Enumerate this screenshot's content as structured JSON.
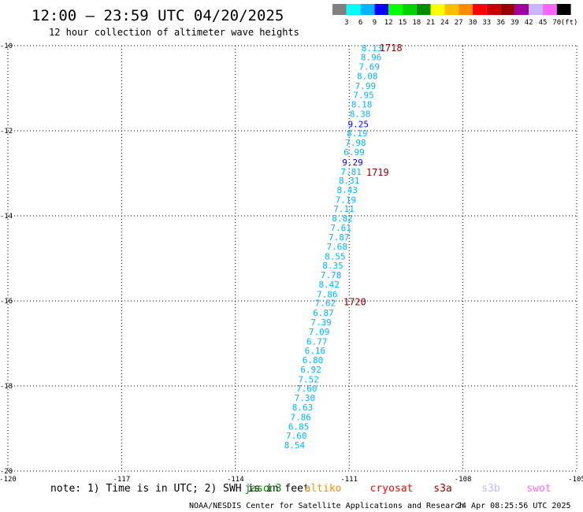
{
  "header": {
    "title": "12:00 – 23:59 UTC 04/20/2025",
    "subtitle": "12 hour collection of altimeter wave heights"
  },
  "legend": {
    "unit": "(ft)",
    "colors": [
      "#808080",
      "#00ffff",
      "#00b4ff",
      "#0000ff",
      "#00ff00",
      "#00d200",
      "#008c00",
      "#ffff00",
      "#ffbe00",
      "#ff8c00",
      "#ff0000",
      "#c80000",
      "#960000",
      "#a000a0",
      "#c8b4ff",
      "#ff64ff",
      "#000000"
    ],
    "labels": [
      "3",
      "6",
      "9",
      "12",
      "15",
      "18",
      "21",
      "24",
      "27",
      "30",
      "33",
      "36",
      "39",
      "42",
      "45",
      "70"
    ]
  },
  "chart_data": {
    "type": "scatter",
    "title": "12:00 – 23:59 UTC 04/20/2025",
    "subtitle": "12 hour collection of altimeter wave heights",
    "xlim": [
      -120,
      -105
    ],
    "ylim": [
      -20,
      -10
    ],
    "x_ticks": [
      "-120",
      "-117",
      "-114",
      "-111",
      "-108",
      "-105"
    ],
    "x_tick_values": [
      -120,
      -117,
      -114,
      -111,
      -108,
      -105
    ],
    "y_ticks": [
      "-10",
      "-12",
      "-14",
      "-16",
      "-18",
      "-20"
    ],
    "y_tick_values": [
      -10,
      -12,
      -14,
      -16,
      -18,
      -20
    ],
    "grid": true,
    "points": [
      {
        "lon": -110.4,
        "lat": -10.06,
        "swh": "8.13"
      },
      {
        "lon": -110.42,
        "lat": -10.27,
        "swh": "8.96"
      },
      {
        "lon": -110.47,
        "lat": -10.49,
        "swh": "7.69"
      },
      {
        "lon": -110.52,
        "lat": -10.71,
        "swh": "8.08"
      },
      {
        "lon": -110.57,
        "lat": -10.94,
        "swh": "7.99"
      },
      {
        "lon": -110.62,
        "lat": -11.16,
        "swh": "7.95"
      },
      {
        "lon": -110.67,
        "lat": -11.38,
        "swh": "8.18"
      },
      {
        "lon": -110.71,
        "lat": -11.6,
        "swh": "8.38"
      },
      {
        "lon": -110.76,
        "lat": -11.84,
        "swh": "9.25"
      },
      {
        "lon": -110.79,
        "lat": -12.06,
        "swh": "8.19"
      },
      {
        "lon": -110.83,
        "lat": -12.28,
        "swh": "7.98"
      },
      {
        "lon": -110.87,
        "lat": -12.5,
        "swh": "6.99"
      },
      {
        "lon": -110.91,
        "lat": -12.74,
        "swh": "9.29"
      },
      {
        "lon": -110.95,
        "lat": -12.96,
        "swh": "7.81"
      },
      {
        "lon": -111.0,
        "lat": -13.17,
        "swh": "8.31"
      },
      {
        "lon": -111.05,
        "lat": -13.39,
        "swh": "8.43"
      },
      {
        "lon": -111.09,
        "lat": -13.62,
        "swh": "7.19"
      },
      {
        "lon": -111.14,
        "lat": -13.83,
        "swh": "7.11"
      },
      {
        "lon": -111.18,
        "lat": -14.06,
        "swh": "8.82"
      },
      {
        "lon": -111.22,
        "lat": -14.28,
        "swh": "7.61"
      },
      {
        "lon": -111.27,
        "lat": -14.5,
        "swh": "7.87"
      },
      {
        "lon": -111.32,
        "lat": -14.72,
        "swh": "7.68"
      },
      {
        "lon": -111.37,
        "lat": -14.95,
        "swh": "8.55"
      },
      {
        "lon": -111.43,
        "lat": -15.17,
        "swh": "8.35"
      },
      {
        "lon": -111.48,
        "lat": -15.39,
        "swh": "7.78"
      },
      {
        "lon": -111.53,
        "lat": -15.61,
        "swh": "8.42"
      },
      {
        "lon": -111.58,
        "lat": -15.84,
        "swh": "7.86"
      },
      {
        "lon": -111.63,
        "lat": -16.05,
        "swh": "7.62"
      },
      {
        "lon": -111.68,
        "lat": -16.28,
        "swh": "6.87"
      },
      {
        "lon": -111.74,
        "lat": -16.5,
        "swh": "7.39"
      },
      {
        "lon": -111.79,
        "lat": -16.72,
        "swh": "7.09"
      },
      {
        "lon": -111.85,
        "lat": -16.95,
        "swh": "6.77"
      },
      {
        "lon": -111.9,
        "lat": -17.17,
        "swh": "6.16"
      },
      {
        "lon": -111.96,
        "lat": -17.39,
        "swh": "6.80"
      },
      {
        "lon": -112.01,
        "lat": -17.61,
        "swh": "6.92"
      },
      {
        "lon": -112.07,
        "lat": -17.84,
        "swh": "7.52"
      },
      {
        "lon": -112.12,
        "lat": -18.06,
        "swh": "7.60"
      },
      {
        "lon": -112.17,
        "lat": -18.28,
        "swh": "7.30"
      },
      {
        "lon": -112.23,
        "lat": -18.5,
        "swh": "8.63"
      },
      {
        "lon": -112.28,
        "lat": -18.73,
        "swh": "7.86"
      },
      {
        "lon": -112.33,
        "lat": -18.95,
        "swh": "6.85"
      },
      {
        "lon": -112.39,
        "lat": -19.17,
        "swh": "7.60"
      },
      {
        "lon": -112.44,
        "lat": -19.39,
        "swh": "8.54"
      }
    ],
    "time_labels": [
      {
        "lon": -110.2,
        "lat": -10.06,
        "text": "1718"
      },
      {
        "lon": -110.55,
        "lat": -12.98,
        "text": "1719"
      },
      {
        "lon": -111.15,
        "lat": -16.03,
        "text": "1720"
      }
    ]
  },
  "note": {
    "text": "note: 1) Time is in UTC; 2) SWH is in feet"
  },
  "satellites": [
    {
      "name": "jason3",
      "color": "#008c00"
    },
    {
      "name": "altiko",
      "color": "#ff8c00"
    },
    {
      "name": "cryosat",
      "color": "#ff0000"
    },
    {
      "name": "s3a",
      "color": "#960000"
    },
    {
      "name": "s3b",
      "color": "#c8b4ff"
    },
    {
      "name": "swot",
      "color": "#ff64ff"
    }
  ],
  "footer": {
    "credit": "NOAA/NESDIS Center for Satellite Applications and Research",
    "timestamp": "24 Apr 08:25:56 UTC 2025"
  }
}
